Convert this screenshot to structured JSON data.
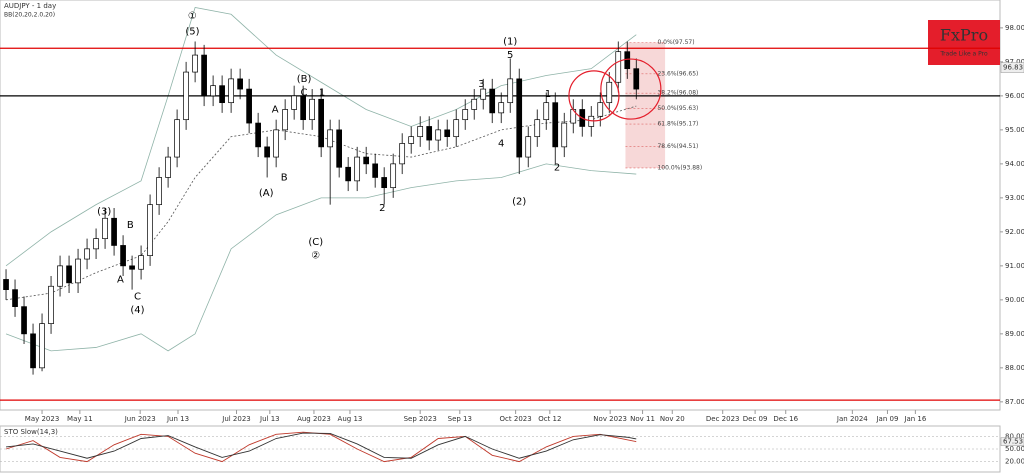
{
  "chart_data": [
    {
      "type": "candlestick",
      "title": "AUDJPY - 1 day",
      "subtitle": "BB(20,20,2.0,20)",
      "open": [
        90.6,
        90.3,
        89.8,
        89.0,
        88.0,
        89.3,
        90.4,
        91.0,
        90.5,
        91.2,
        91.5,
        91.8,
        92.4,
        91.6,
        91.0,
        90.9,
        91.3,
        92.8,
        93.6,
        94.2,
        95.3,
        96.7,
        97.2,
        96.0,
        96.3,
        95.8,
        96.5,
        96.2,
        95.2,
        94.5,
        94.2,
        95.0,
        95.6,
        96.0,
        95.3,
        95.9,
        94.5,
        95.0,
        93.9,
        93.5,
        94.2,
        94.0,
        93.6,
        93.3,
        94.0,
        94.6,
        94.8,
        95.1,
        94.7,
        95.0,
        94.8,
        95.3,
        95.6,
        95.9,
        96.2,
        95.5,
        95.8,
        96.5,
        94.2,
        94.8,
        95.3,
        95.8,
        94.5,
        95.2,
        95.6,
        95.1,
        95.4,
        95.8,
        96.4,
        97.3,
        96.8
      ],
      "high": [
        90.9,
        90.6,
        90.1,
        89.3,
        89.6,
        90.7,
        91.3,
        91.3,
        91.5,
        91.8,
        92.1,
        92.7,
        92.7,
        91.9,
        91.3,
        91.6,
        93.1,
        93.9,
        94.5,
        95.6,
        97.0,
        97.6,
        97.5,
        96.6,
        96.6,
        96.8,
        96.8,
        96.5,
        95.5,
        94.8,
        95.3,
        95.9,
        96.3,
        96.3,
        96.2,
        96.2,
        95.3,
        95.3,
        94.2,
        94.5,
        94.5,
        94.3,
        93.9,
        94.3,
        94.9,
        95.1,
        95.4,
        95.4,
        95.3,
        95.3,
        95.6,
        95.9,
        96.2,
        96.5,
        96.5,
        96.1,
        97.1,
        96.8,
        95.1,
        95.6,
        96.1,
        96.1,
        95.5,
        95.9,
        95.9,
        95.7,
        96.1,
        96.7,
        97.6,
        97.6,
        97.1
      ],
      "low": [
        90.0,
        89.5,
        88.7,
        87.8,
        87.9,
        89.0,
        90.1,
        90.2,
        90.2,
        90.9,
        91.2,
        91.5,
        91.3,
        90.7,
        90.3,
        90.6,
        91.0,
        92.5,
        93.3,
        93.9,
        95.0,
        96.4,
        95.7,
        95.7,
        95.5,
        95.5,
        95.9,
        94.9,
        94.2,
        93.6,
        93.9,
        94.7,
        95.3,
        95.0,
        95.0,
        94.2,
        92.8,
        93.6,
        93.2,
        93.2,
        93.7,
        93.3,
        92.8,
        93.0,
        93.7,
        94.3,
        94.5,
        94.4,
        94.4,
        94.5,
        94.5,
        95.0,
        95.3,
        95.6,
        95.2,
        95.2,
        95.5,
        93.7,
        93.9,
        94.5,
        95.0,
        94.0,
        94.2,
        94.9,
        94.8,
        94.8,
        95.1,
        95.5,
        96.1,
        96.5,
        95.9
      ],
      "close": [
        90.3,
        89.8,
        89.0,
        88.0,
        89.3,
        90.4,
        91.0,
        90.5,
        91.2,
        91.5,
        91.8,
        92.4,
        91.6,
        91.0,
        90.9,
        91.3,
        92.8,
        93.6,
        94.2,
        95.3,
        96.7,
        97.2,
        96.0,
        96.3,
        95.8,
        96.5,
        96.2,
        95.2,
        94.5,
        94.2,
        95.0,
        95.6,
        96.0,
        95.3,
        95.9,
        94.5,
        95.0,
        93.9,
        93.5,
        94.2,
        94.0,
        93.6,
        93.3,
        94.0,
        94.6,
        94.8,
        95.1,
        94.7,
        95.0,
        94.8,
        95.3,
        95.6,
        95.9,
        96.2,
        95.5,
        95.8,
        96.5,
        94.2,
        94.8,
        95.3,
        95.8,
        94.5,
        95.2,
        95.6,
        95.1,
        95.4,
        95.8,
        96.4,
        97.3,
        96.8,
        96.2
      ],
      "series": [
        {
          "x": [
            0,
            5,
            10,
            15,
            18,
            21,
            25,
            30,
            35,
            40,
            45,
            50,
            55,
            60,
            65,
            70
          ],
          "values": [
            91.0,
            92.0,
            92.8,
            93.5,
            96.0,
            98.6,
            98.4,
            97.2,
            96.4,
            95.6,
            95.1,
            95.6,
            96.3,
            96.6,
            96.8,
            97.8
          ],
          "color": "#8fb3a8"
        },
        {
          "x": [
            0,
            5,
            10,
            15,
            18,
            21,
            25,
            30,
            35,
            40,
            45,
            50,
            55,
            60,
            65,
            70
          ],
          "values": [
            90.0,
            90.2,
            90.8,
            91.3,
            92.3,
            93.6,
            94.8,
            95.0,
            94.8,
            94.3,
            94.2,
            94.5,
            95.0,
            95.2,
            95.3,
            95.7
          ],
          "color": "#555555",
          "dashed": true
        },
        {
          "x": [
            0,
            5,
            10,
            15,
            18,
            21,
            25,
            30,
            35,
            40,
            45,
            50,
            55,
            60,
            65,
            70
          ],
          "values": [
            89.0,
            88.5,
            88.6,
            89.0,
            88.5,
            89.0,
            91.5,
            92.5,
            93.0,
            93.0,
            93.3,
            93.5,
            93.6,
            94.0,
            93.8,
            93.7
          ],
          "color": "#8fb3a8"
        }
      ],
      "levels": [
        {
          "value": 97.4,
          "color": "#e00000"
        },
        {
          "value": 96.0,
          "color": "#000000"
        },
        {
          "value": 87.05,
          "color": "#e00000"
        }
      ],
      "fib": {
        "values": [
          97.57,
          96.65,
          96.08,
          95.63,
          95.17,
          94.51,
          93.88
        ],
        "labels": [
          "0.0%(97.57)",
          "23.6%(96.65)",
          "38.2%(96.08)",
          "50.0%(95.63)",
          "61.8%(95.17)",
          "78.6%(94.51)",
          "100.0%(93.88)"
        ],
        "xrange": [
          68.8,
          73.2
        ]
      },
      "highlights": [
        {
          "x": 65.3,
          "y": 96.0
        },
        {
          "x": 69.4,
          "y": 96.2
        }
      ],
      "last": 96.83,
      "annotations": [
        {
          "text": "①",
          "x": 20.7,
          "y": 98.35
        },
        {
          "text": "(5)",
          "x": 20.7,
          "y": 97.9
        },
        {
          "text": "(3)",
          "x": 10.9,
          "y": 92.6
        },
        {
          "text": "B",
          "x": 13.8,
          "y": 92.2
        },
        {
          "text": "A",
          "x": 12.7,
          "y": 90.6
        },
        {
          "text": "C",
          "x": 14.6,
          "y": 90.1
        },
        {
          "text": "(4)",
          "x": 14.6,
          "y": 89.7
        },
        {
          "text": "A",
          "x": 29.9,
          "y": 95.6
        },
        {
          "text": "(B)",
          "x": 33.1,
          "y": 96.5
        },
        {
          "text": "C",
          "x": 33.1,
          "y": 96.1
        },
        {
          "text": "1",
          "x": 35.1,
          "y": 96.1
        },
        {
          "text": "(A)",
          "x": 28.9,
          "y": 93.15
        },
        {
          "text": "B",
          "x": 30.9,
          "y": 93.6
        },
        {
          "text": "(C)",
          "x": 34.4,
          "y": 91.7
        },
        {
          "text": "②",
          "x": 34.4,
          "y": 91.3
        },
        {
          "text": "2",
          "x": 41.8,
          "y": 92.7
        },
        {
          "text": "3",
          "x": 52.8,
          "y": 96.35
        },
        {
          "text": "4",
          "x": 55,
          "y": 94.6
        },
        {
          "text": "(1)",
          "x": 56,
          "y": 97.6
        },
        {
          "text": "5",
          "x": 56,
          "y": 97.2
        },
        {
          "text": "1",
          "x": 60.2,
          "y": 96.05
        },
        {
          "text": "(2)",
          "x": 57,
          "y": 92.9
        },
        {
          "text": "2",
          "x": 61.2,
          "y": 93.9
        }
      ],
      "xlim": [
        -0.67,
        110.4
      ],
      "ylim": [
        86.76,
        98.82
      ],
      "xticks": [
        {
          "value": 4,
          "label": "May 2023"
        },
        {
          "value": 8.2,
          "label": "May 11"
        },
        {
          "value": 14.9,
          "label": "Jun 2023"
        },
        {
          "value": 19.1,
          "label": "Jun 13"
        },
        {
          "value": 25.6,
          "label": "Jul 2023"
        },
        {
          "value": 29.3,
          "label": "Jul 13"
        },
        {
          "value": 34.2,
          "label": "Aug 2023"
        },
        {
          "value": 38.2,
          "label": "Aug 13"
        },
        {
          "value": 46,
          "label": "Sep 2023"
        },
        {
          "value": 50.4,
          "label": "Sep 13"
        },
        {
          "value": 56.6,
          "label": "Oct 2023"
        },
        {
          "value": 60.4,
          "label": "Oct 12"
        },
        {
          "value": 67.1,
          "label": "Nov 2023"
        },
        {
          "value": 70.7,
          "label": "Nov 11"
        },
        {
          "value": 74,
          "label": "Nov 20"
        },
        {
          "value": 79.6,
          "label": "Dec 2023"
        },
        {
          "value": 83.2,
          "label": "Dec 09"
        },
        {
          "value": 86.6,
          "label": "Dec 16"
        },
        {
          "value": 94,
          "label": "Jan 2024"
        },
        {
          "value": 97.9,
          "label": "Jan 09"
        },
        {
          "value": 101,
          "label": "Jan 16"
        }
      ],
      "yticks": [
        {
          "value": 98,
          "label": "98.00"
        },
        {
          "value": 97,
          "label": "97.00"
        },
        {
          "value": 96,
          "label": "96.00"
        },
        {
          "value": 95,
          "label": "95.00"
        },
        {
          "value": 94,
          "label": "94.00"
        },
        {
          "value": 93,
          "label": "93.00"
        },
        {
          "value": 92,
          "label": "92.00"
        },
        {
          "value": 91,
          "label": "91.00"
        },
        {
          "value": 90,
          "label": "90.00"
        },
        {
          "value": 89,
          "label": "89.00"
        },
        {
          "value": 88,
          "label": "88.00"
        },
        {
          "value": 87,
          "label": "87.00"
        }
      ],
      "brand": {
        "name": "FxPro",
        "tagline": "Trade Like a Pro"
      }
    },
    {
      "type": "line",
      "title": "STO Slow(14,3)",
      "series": [
        {
          "x": [
            0,
            3,
            6,
            9,
            12,
            15,
            18,
            21,
            24,
            27,
            30,
            33,
            36,
            39,
            42,
            45,
            48,
            51,
            54,
            57,
            60,
            63,
            66,
            69,
            70
          ],
          "values": [
            50,
            70,
            30,
            20,
            60,
            85,
            80,
            40,
            20,
            60,
            85,
            90,
            85,
            50,
            20,
            30,
            75,
            80,
            35,
            20,
            55,
            80,
            85,
            72,
            67.53
          ],
          "color": "#c0392b"
        },
        {
          "x": [
            0,
            3,
            6,
            9,
            12,
            15,
            18,
            21,
            24,
            27,
            30,
            33,
            36,
            39,
            42,
            45,
            48,
            51,
            54,
            57,
            60,
            63,
            66,
            69,
            70
          ],
          "values": [
            55,
            62,
            45,
            28,
            45,
            75,
            82,
            55,
            30,
            45,
            75,
            88,
            87,
            62,
            30,
            28,
            60,
            80,
            50,
            28,
            45,
            72,
            84,
            78,
            74
          ],
          "color": "#333333"
        }
      ],
      "last": 67.53,
      "ylim": [
        0,
        100
      ],
      "yticks": [
        {
          "value": 80,
          "label": "80.00"
        },
        {
          "value": 50,
          "label": "50.00"
        },
        {
          "value": 20,
          "label": "20.00"
        }
      ]
    }
  ]
}
